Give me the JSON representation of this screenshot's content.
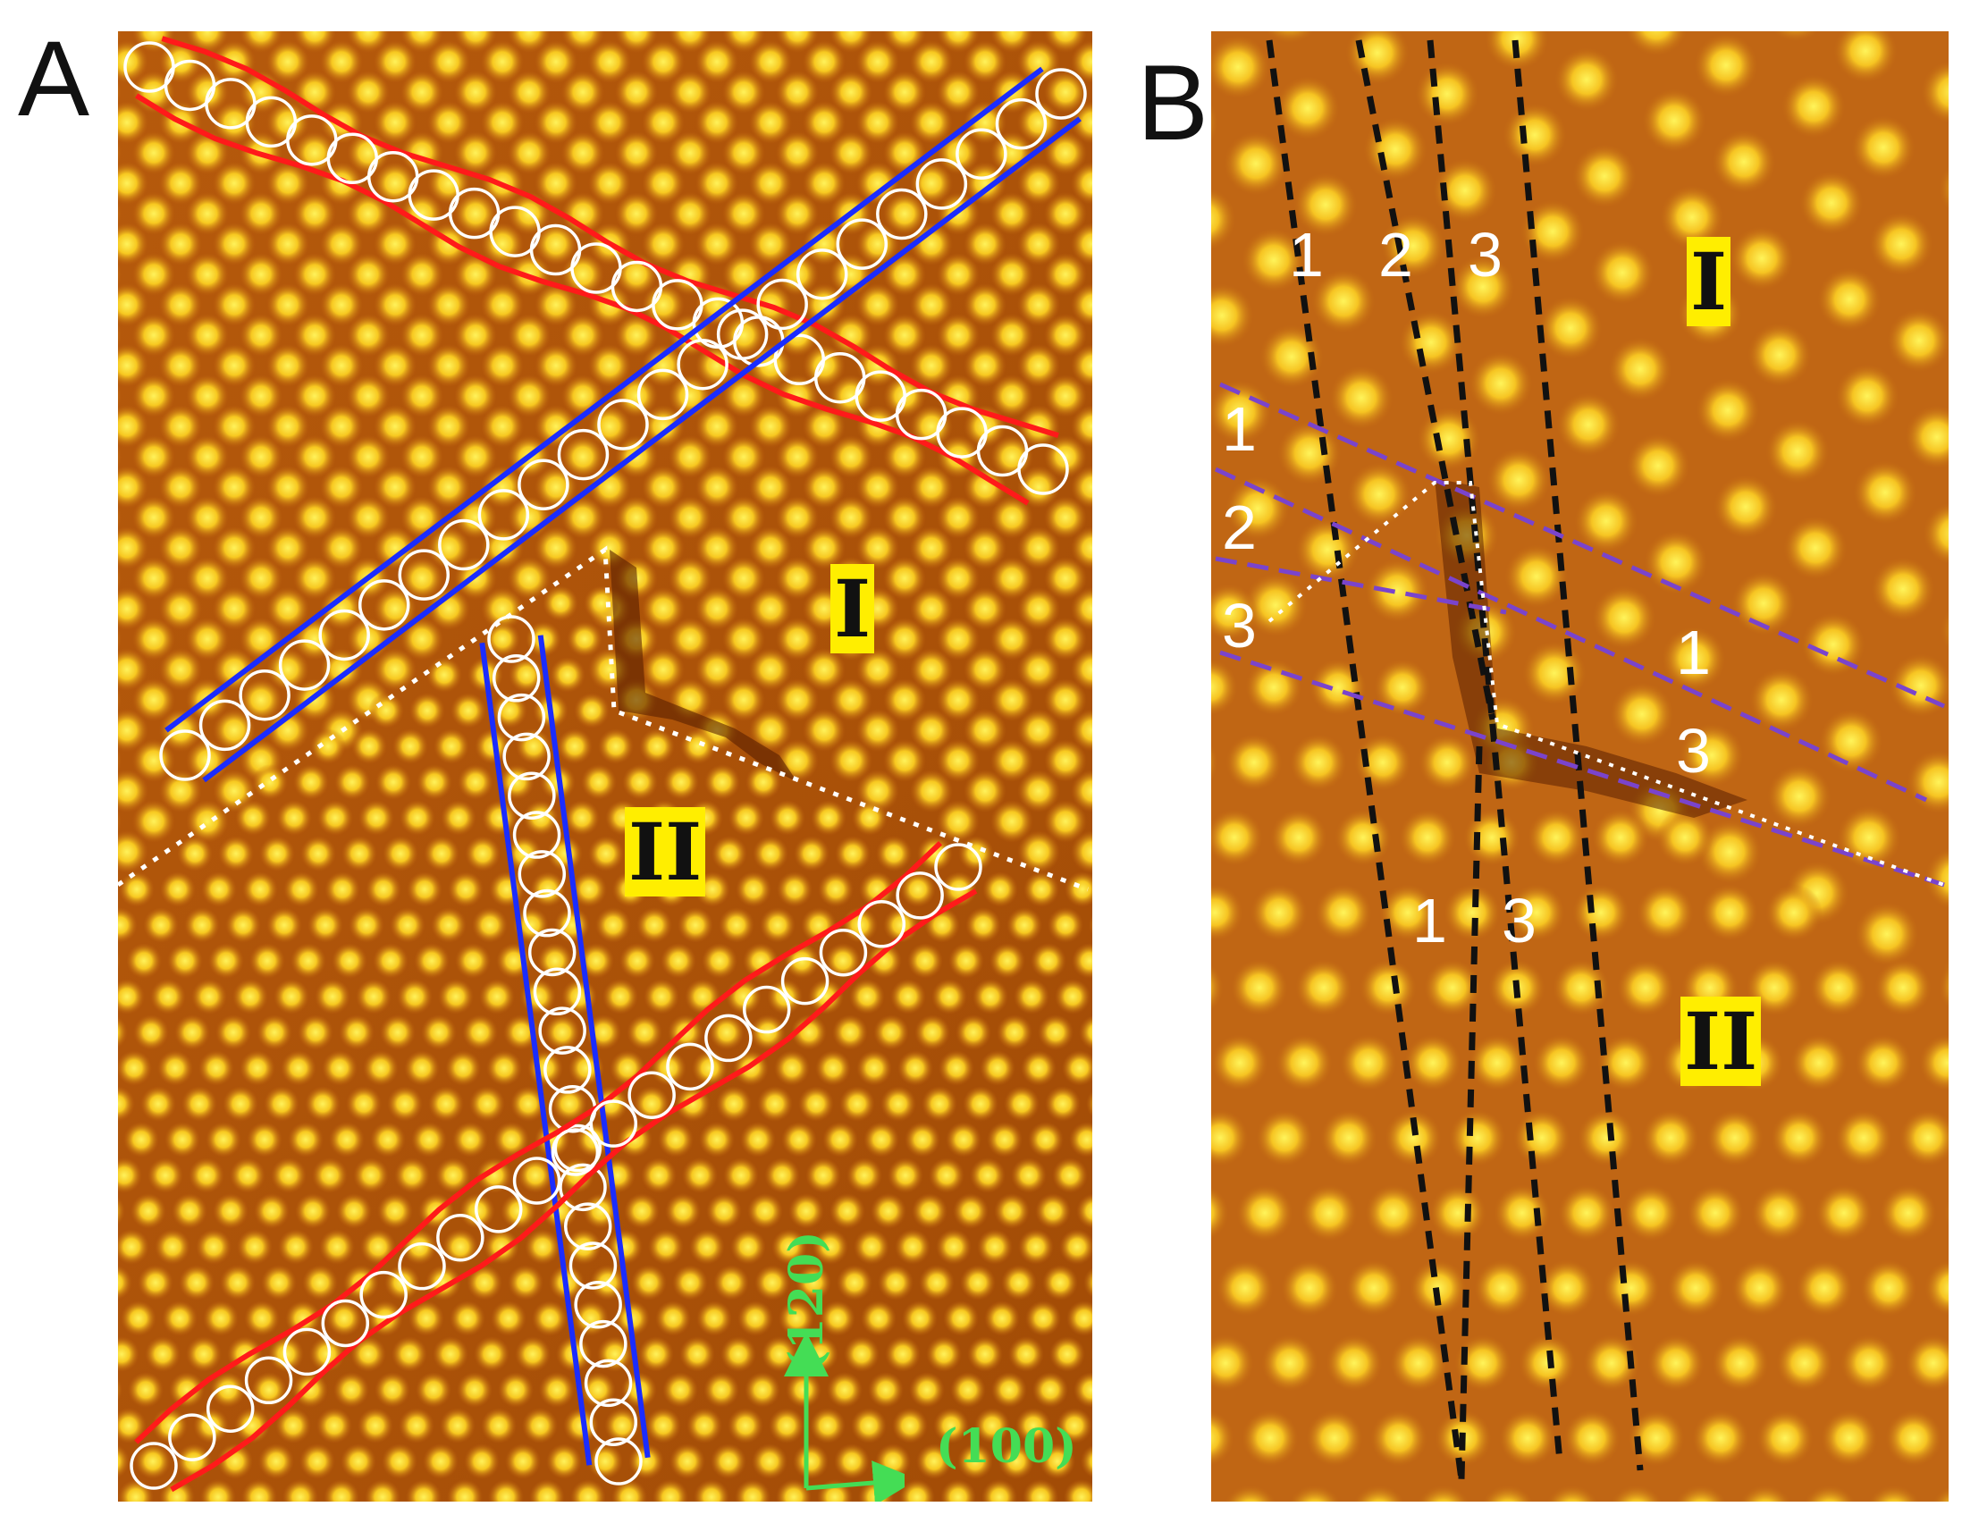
{
  "panels": {
    "a": {
      "letter": "A",
      "domain_labels": {
        "top": "I",
        "bottom": "II"
      },
      "axis_labels": {
        "vertical": "(120)",
        "horizontal": "(100)"
      }
    },
    "b": {
      "letter": "B",
      "domain_labels": {
        "top": "I",
        "bottom": "II"
      },
      "row_labels": {
        "top": [
          "1",
          "2",
          "3"
        ],
        "left": [
          "1",
          "2",
          "3"
        ],
        "right": [
          "1",
          "3"
        ],
        "bottom": [
          "1",
          "3"
        ]
      }
    }
  },
  "colors": {
    "substrate_dark": "#8a3a00",
    "substrate_mid": "#c46a10",
    "atom_bright": "#ffee40",
    "highlight_red": "#ff1a1a",
    "highlight_blue": "#1a2cff",
    "dashed_purple": "#7a44cc",
    "label_bg": "#ffee00",
    "axis_green": "#44dd55"
  }
}
